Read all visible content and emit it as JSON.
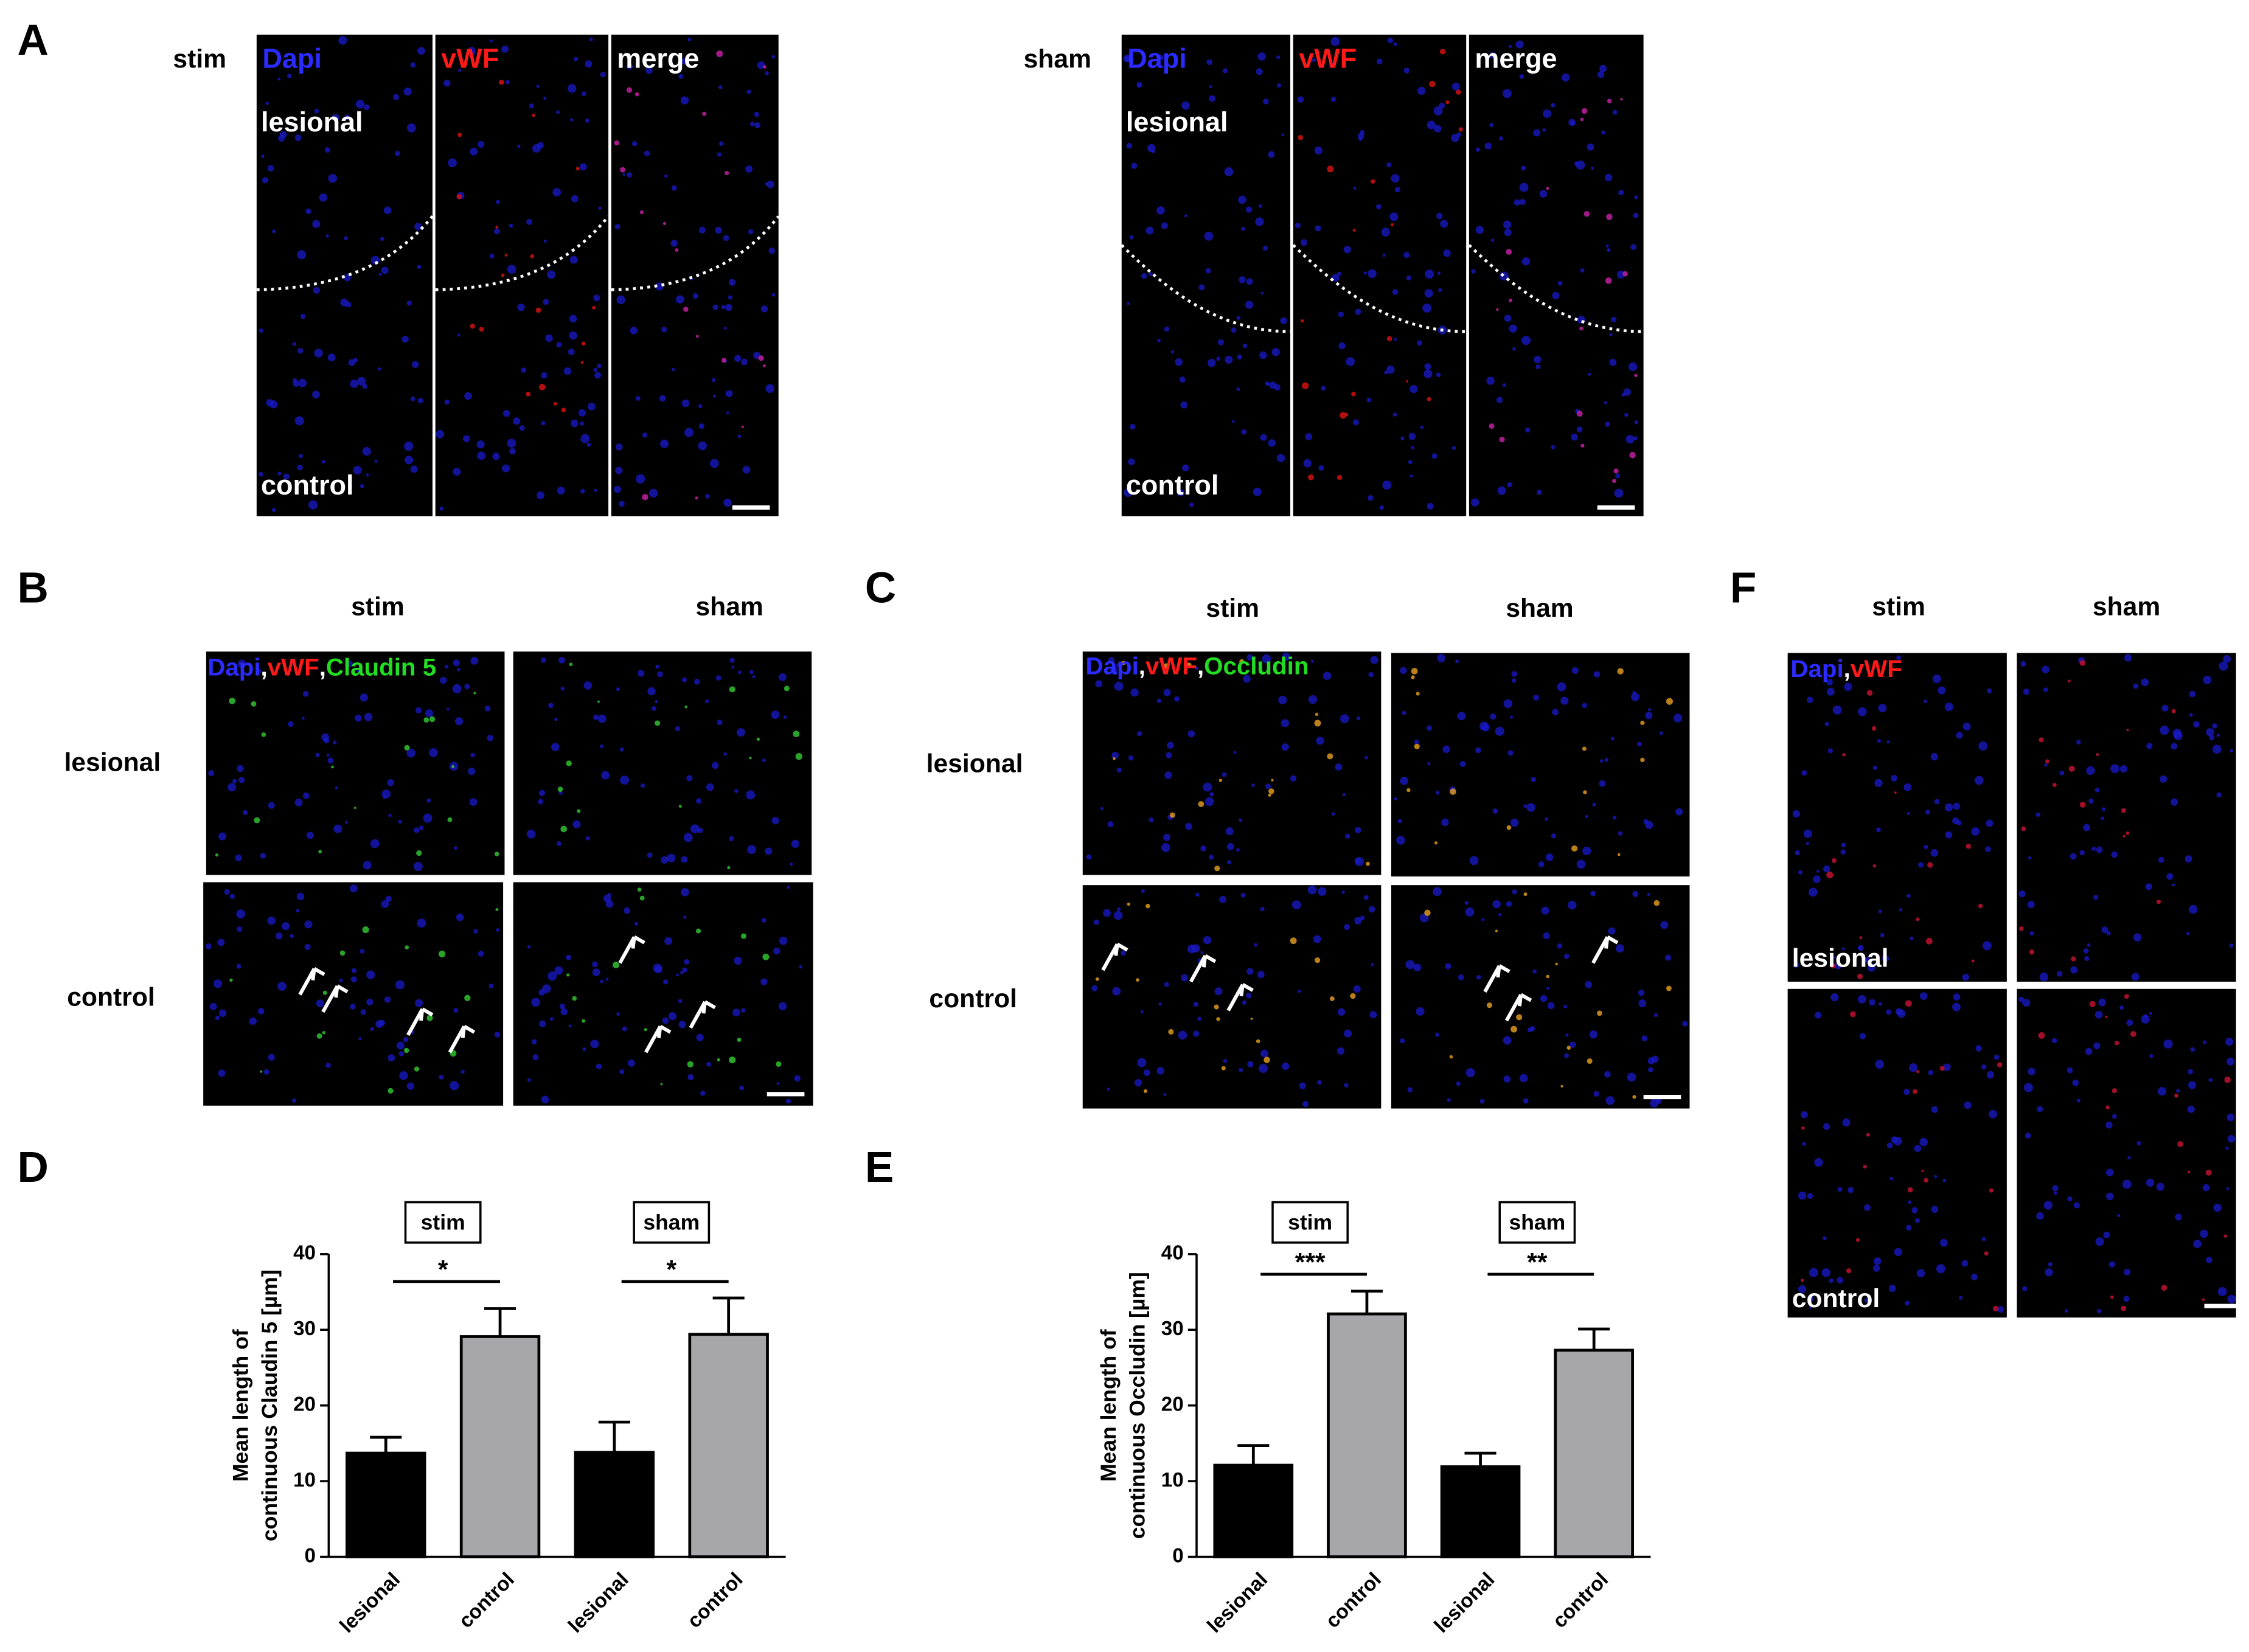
{
  "separator": ",",
  "panels": [
    {
      "label": "A",
      "groups": [
        {
          "title": "stim",
          "channels": [
            {
              "text": "Dapi",
              "color": "#2b2bff"
            },
            {
              "text": "vWF",
              "color": "#ff1a1a"
            },
            {
              "text": "merge",
              "color": "#ffffff"
            }
          ],
          "rows": [
            "lesional",
            "control"
          ]
        },
        {
          "title": "sham",
          "channels": [
            {
              "text": "Dapi",
              "color": "#2b2bff"
            },
            {
              "text": "vWF",
              "color": "#ff1a1a"
            },
            {
              "text": "merge",
              "color": "#ffffff"
            }
          ],
          "rows": [
            "lesional",
            "control"
          ]
        }
      ]
    },
    {
      "label": "B",
      "columns": [
        "stim",
        "sham"
      ],
      "rows": [
        "lesional",
        "control"
      ],
      "stain": [
        {
          "text": "Dapi",
          "color": "#2b2bff"
        },
        {
          "text": "vWF",
          "color": "#ff1a1a"
        },
        {
          "text": "Claudin 5",
          "color": "#22dd22"
        }
      ]
    },
    {
      "label": "C",
      "columns": [
        "stim",
        "sham"
      ],
      "rows": [
        "lesional",
        "control"
      ],
      "stain": [
        {
          "text": "Dapi",
          "color": "#2b2bff"
        },
        {
          "text": "vWF",
          "color": "#ff1a1a"
        },
        {
          "text": "Occludin",
          "color": "#22dd22"
        }
      ]
    },
    {
      "label": "F",
      "columns": [
        "stim",
        "sham"
      ],
      "rows": [
        "lesional",
        "control"
      ],
      "stain": [
        {
          "text": "Dapi",
          "color": "#2b2bff"
        },
        {
          "text": "vWF",
          "color": "#ff1a1a"
        }
      ]
    }
  ],
  "chart_data": [
    {
      "type": "bar",
      "label": "D",
      "y_label": [
        "Mean length of",
        "continuous Claudin 5 [µm]"
      ],
      "groups": [
        "stim",
        "sham"
      ],
      "categories": [
        "lesional",
        "control",
        "lesional",
        "control"
      ],
      "values": [
        13.7,
        29.1,
        13.8,
        29.4
      ],
      "errors": [
        2.1,
        3.7,
        4.0,
        4.8
      ],
      "colors": [
        "#000000",
        "#a6a6ab",
        "#000000",
        "#a6a6ab"
      ],
      "significance": [
        "*",
        "*"
      ],
      "ylim": [
        0,
        40
      ],
      "yticks": [
        0,
        10,
        20,
        30,
        40
      ]
    },
    {
      "type": "bar",
      "label": "E",
      "y_label": [
        "Mean length of",
        "continuous Occludin [µm]"
      ],
      "groups": [
        "stim",
        "sham"
      ],
      "categories": [
        "lesional",
        "control",
        "lesional",
        "control"
      ],
      "values": [
        12.1,
        32.1,
        11.9,
        27.3
      ],
      "errors": [
        2.6,
        3.0,
        1.8,
        2.8
      ],
      "colors": [
        "#000000",
        "#a6a6ab",
        "#000000",
        "#a6a6ab"
      ],
      "significance": [
        "***",
        "**"
      ],
      "ylim": [
        0,
        40
      ],
      "yticks": [
        0,
        10,
        20,
        30,
        40
      ]
    }
  ]
}
